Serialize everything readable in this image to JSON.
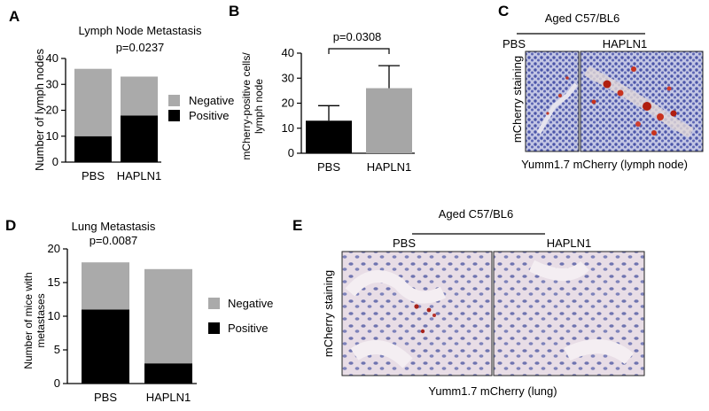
{
  "panels": {
    "A": {
      "letter": "A",
      "title": "Lymph Node Metastasis",
      "pvalue": "p=0.0237",
      "ylabel": "Number of lymph nodes",
      "legend": [
        "Negative",
        "Positive"
      ]
    },
    "B": {
      "letter": "B",
      "pvalue": "p=0.0308",
      "ylabel_line1": "mCherry-positive cells/",
      "ylabel_line2": "lymph node"
    },
    "C": {
      "letter": "C",
      "group_header": "Aged C57/BL6",
      "col1": "PBS",
      "col2": "HAPLN1",
      "side_label": "mCherry staining",
      "caption": "Yumm1.7 mCherry (lymph node)"
    },
    "D": {
      "letter": "D",
      "title": "Lung Metastasis",
      "pvalue": "p=0.0087",
      "ylabel_line1": "Number of mice with",
      "ylabel_line2": "metastases",
      "legend": [
        "Negative",
        "Positive"
      ]
    },
    "E": {
      "letter": "E",
      "group_header": "Aged C57/BL6",
      "col1": "PBS",
      "col2": "HAPLN1",
      "side_label": "mCherry staining",
      "caption": "Yumm1.7 mCherry (lung)"
    }
  },
  "colors": {
    "negative": "#aaaaaa",
    "positive": "#000000",
    "hapln1_bar": "#a6a6a6"
  },
  "chart_data": [
    {
      "type": "bar",
      "stacked": true,
      "title": "Lymph Node Metastasis",
      "ylabel": "Number of lymph nodes",
      "categories": [
        "PBS",
        "HAPLN1"
      ],
      "series": [
        {
          "name": "Positive",
          "values": [
            10,
            18
          ]
        },
        {
          "name": "Negative",
          "values": [
            26,
            15
          ]
        }
      ],
      "ylim": [
        0,
        40
      ],
      "yticks": [
        0,
        10,
        20,
        30,
        40
      ],
      "legend": "right"
    },
    {
      "type": "bar",
      "ylabel": "mCherry-positive cells/ lymph node",
      "categories": [
        "PBS",
        "HAPLN1"
      ],
      "values": [
        13,
        26
      ],
      "errors": [
        6,
        9
      ],
      "ylim": [
        0,
        40
      ],
      "yticks": [
        0,
        10,
        20,
        30,
        40
      ],
      "annotation": "p=0.0308"
    },
    {
      "type": "bar",
      "stacked": true,
      "title": "Lung Metastasis",
      "ylabel": "Number of mice with metastases",
      "categories": [
        "PBS",
        "HAPLN1"
      ],
      "series": [
        {
          "name": "Positive",
          "values": [
            11,
            3
          ]
        },
        {
          "name": "Negative",
          "values": [
            7,
            14
          ]
        }
      ],
      "ylim": [
        0,
        20
      ],
      "yticks": [
        0,
        5,
        10,
        15,
        20
      ],
      "legend": "right"
    }
  ]
}
